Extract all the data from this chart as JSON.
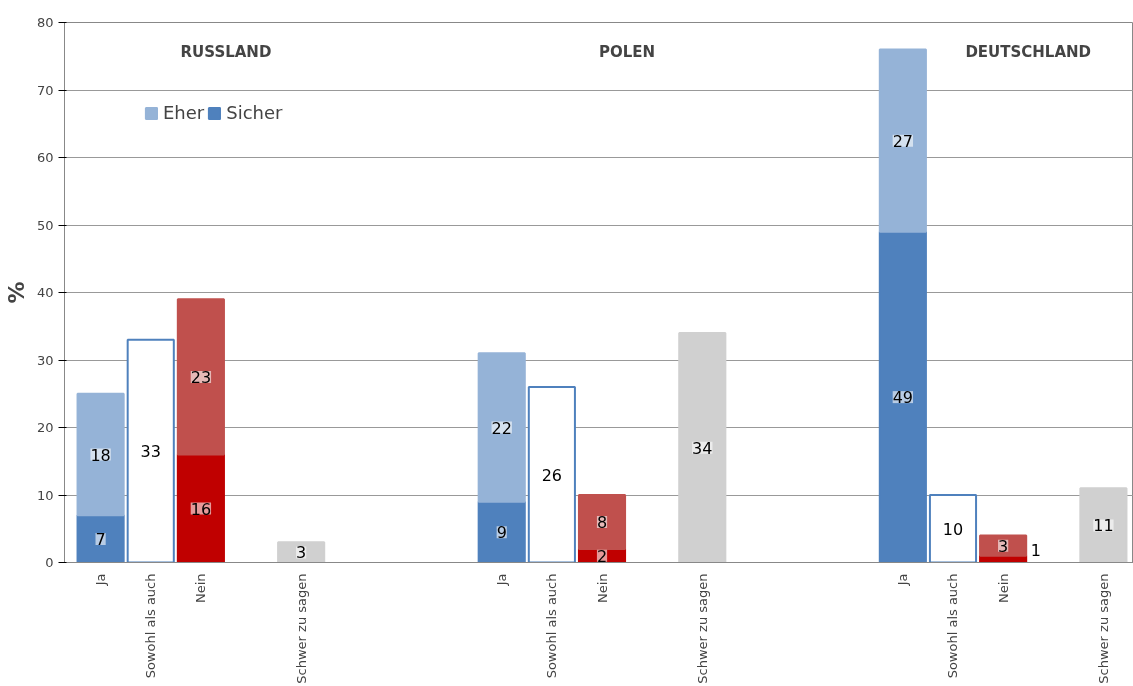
{
  "chart_data": {
    "type": "bar",
    "stacked": true,
    "ylabel": "%",
    "categories": [
      "Ja",
      "Sowohl als auch",
      "Nein",
      null,
      "Schwer zu sagen",
      null,
      null,
      null,
      "Ja",
      "Sowohl als auch",
      "Nein",
      null,
      "Schwer zu sagen",
      null,
      null,
      null,
      "Ja",
      "Sowohl als auch",
      "Nein",
      null,
      "Schwer zu sagen"
    ],
    "series": [
      {
        "name": "Sicher",
        "color": "#404040",
        "colors": [
          "#4f81bd",
          null,
          "#c00000",
          null,
          null,
          null,
          null,
          null,
          "#4f81bd",
          null,
          "#c00000",
          null,
          null,
          null,
          null,
          null,
          "#4f81bd",
          null,
          "#c00000",
          null,
          null
        ],
        "values": [
          7,
          null,
          16,
          null,
          null,
          null,
          null,
          null,
          9,
          null,
          2,
          null,
          null,
          null,
          null,
          null,
          49,
          null,
          1,
          null,
          null
        ]
      },
      {
        "name": "Eher",
        "color": "#606060",
        "colors": [
          "#95b3d7",
          null,
          "#c0504d",
          null,
          null,
          null,
          null,
          null,
          "#95b3d7",
          null,
          "#c0504d",
          null,
          null,
          null,
          null,
          null,
          "#95b3d7",
          null,
          "#c0504d",
          null,
          null
        ],
        "values": [
          18,
          null,
          23,
          null,
          null,
          null,
          null,
          null,
          22,
          null,
          8,
          null,
          null,
          null,
          null,
          null,
          27,
          null,
          3,
          null,
          null
        ]
      },
      {
        "color": "#ffffff",
        "values": [
          null,
          33,
          null,
          null,
          null,
          null,
          null,
          null,
          null,
          26,
          null,
          null,
          null,
          null,
          null,
          null,
          null,
          10,
          null,
          null,
          null
        ]
      },
      {
        "color": "#d0d0d0",
        "values": [
          null,
          null,
          null,
          null,
          3,
          null,
          null,
          null,
          null,
          null,
          null,
          null,
          34,
          null,
          null,
          null,
          null,
          null,
          null,
          null,
          11
        ]
      }
    ],
    "ylim": [
      0,
      80
    ],
    "yticks": [
      0,
      10,
      20,
      30,
      40,
      50,
      60,
      70,
      80
    ],
    "grid": "y",
    "legend": "top left",
    "data_labels": true,
    "annotations": [
      "RUSSLAND",
      "POLEN",
      "DEUTSCHLAND"
    ]
  }
}
